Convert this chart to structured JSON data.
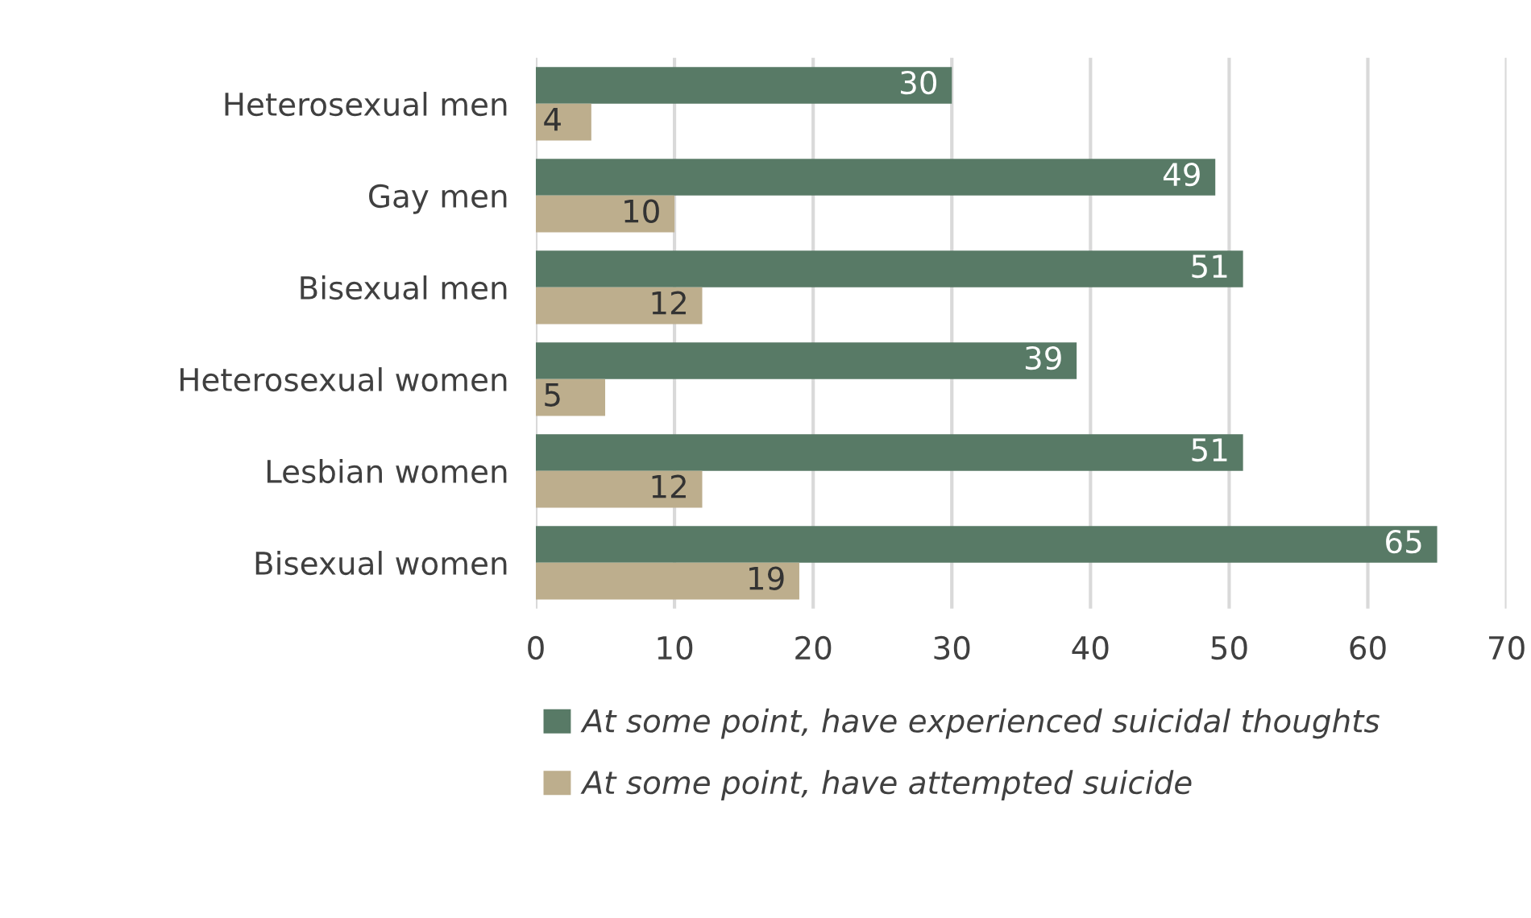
{
  "chart_data": {
    "type": "bar",
    "orientation": "horizontal",
    "categories": [
      "Heterosexual men",
      "Gay men",
      "Bisexual men",
      "Heterosexual women",
      "Lesbian women",
      "Bisexual women"
    ],
    "series": [
      {
        "name": "At some point, have experienced suicidal thoughts",
        "color": "#587a66",
        "values": [
          30,
          49,
          51,
          39,
          51,
          65
        ]
      },
      {
        "name": "At some point, have attempted suicide",
        "color": "#bdae8d",
        "values": [
          4,
          10,
          12,
          5,
          12,
          19
        ]
      }
    ],
    "xlim": [
      0,
      70
    ],
    "xticks": [
      0,
      10,
      20,
      30,
      40,
      50,
      60,
      70
    ],
    "grid": "x",
    "legend": "bottom",
    "data_labels": true
  }
}
